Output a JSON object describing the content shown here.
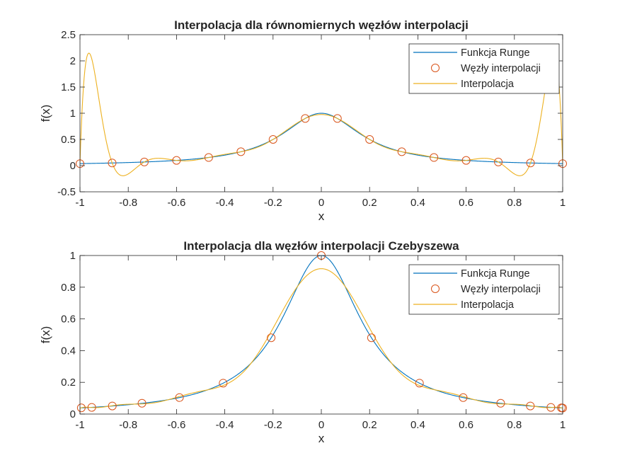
{
  "colors": {
    "runge": "#0072bd",
    "interp": "#edb120",
    "nodes": "#d95319",
    "axis": "#262626",
    "background": "#ffffff"
  },
  "chart_data": [
    {
      "type": "line",
      "title": "Interpolacja dla równomiernych węzłów interpolacji",
      "xlabel": "x",
      "ylabel": "f(x)",
      "xlim": [
        -1,
        1
      ],
      "ylim": [
        -0.5,
        2.5
      ],
      "xticks": [
        -1,
        -0.8,
        -0.6,
        -0.4,
        -0.2,
        0,
        0.2,
        0.4,
        0.6,
        0.8,
        1
      ],
      "xtick_labels": [
        "-1",
        "-0.8",
        "-0.6",
        "-0.4",
        "-0.2",
        "0",
        "0.2",
        "0.4",
        "0.6",
        "0.8",
        "1"
      ],
      "yticks": [
        -0.5,
        0,
        0.5,
        1,
        1.5,
        2,
        2.5
      ],
      "ytick_labels": [
        "-0.5",
        "0",
        "0.5",
        "1",
        "1.5",
        "2",
        "2.5"
      ],
      "grid": false,
      "legend_position": "top-right",
      "series": [
        {
          "name": "Funkcja Runge",
          "kind": "line",
          "color": "#0072bd",
          "function": "runge"
        },
        {
          "name": "Węzły interpolacji",
          "kind": "markers",
          "marker": "circle",
          "color": "#d95319",
          "x": [
            -1,
            -0.8667,
            -0.7333,
            -0.6,
            -0.4667,
            -0.3333,
            -0.2,
            -0.0667,
            0.0667,
            0.2,
            0.3333,
            0.4667,
            0.6,
            0.7333,
            0.8667,
            1
          ],
          "y": [
            0.038,
            0.051,
            0.069,
            0.1,
            0.155,
            0.265,
            0.5,
            0.9,
            0.9,
            0.5,
            0.265,
            0.155,
            0.1,
            0.069,
            0.051,
            0.038
          ]
        },
        {
          "name": "Interpolacja",
          "kind": "line",
          "color": "#edb120",
          "method": "lagrange",
          "nodes": "equidistant",
          "n": 16
        }
      ]
    },
    {
      "type": "line",
      "title": "Interpolacja dla węzłów interpolacji Czebyszewa",
      "xlabel": "x",
      "ylabel": "f(x)",
      "xlim": [
        -1,
        1
      ],
      "ylim": [
        0,
        1
      ],
      "xticks": [
        -1,
        -0.8,
        -0.6,
        -0.4,
        -0.2,
        0,
        0.2,
        0.4,
        0.6,
        0.8,
        1
      ],
      "xtick_labels": [
        "-1",
        "-0.8",
        "-0.6",
        "-0.4",
        "-0.2",
        "0",
        "0.2",
        "0.4",
        "0.6",
        "0.8",
        "1"
      ],
      "yticks": [
        0,
        0.2,
        0.4,
        0.6,
        0.8,
        1
      ],
      "ytick_labels": [
        "0",
        "0.2",
        "0.4",
        "0.6",
        "0.8",
        "1"
      ],
      "grid": false,
      "legend_position": "top-right",
      "series": [
        {
          "name": "Funkcja Runge",
          "kind": "line",
          "color": "#0072bd",
          "function": "runge"
        },
        {
          "name": "Węzły interpolacji",
          "kind": "markers",
          "marker": "circle",
          "color": "#d95319",
          "x": [
            -0.9945,
            -0.9511,
            -0.866,
            -0.7431,
            -0.5878,
            -0.4067,
            -0.2079,
            0,
            0.2079,
            0.4067,
            0.5878,
            0.7431,
            0.866,
            0.9511,
            0.9945,
            1
          ],
          "y": [
            0.039,
            0.042,
            0.051,
            0.068,
            0.104,
            0.195,
            0.481,
            1.0,
            0.481,
            0.195,
            0.104,
            0.068,
            0.051,
            0.042,
            0.039,
            0.038
          ]
        },
        {
          "name": "Interpolacja",
          "kind": "line",
          "color": "#edb120",
          "method": "lagrange",
          "nodes": "chebyshev",
          "n": 16
        }
      ]
    }
  ]
}
